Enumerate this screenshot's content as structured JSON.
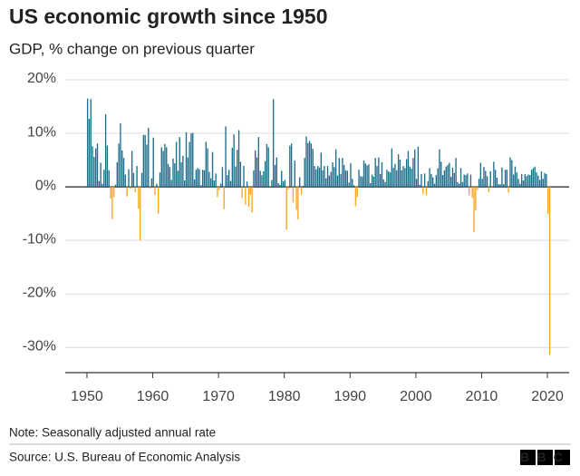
{
  "chart_data": {
    "type": "bar",
    "title": "US economic growth since 1950",
    "subtitle": "GDP, % change on previous quarter",
    "note": "Note: Seasonally adjusted annual rate",
    "source": "Source: U.S. Bureau of Economic Analysis",
    "logo": "BBC",
    "color": "#1f6e8c",
    "negative_color": "#f5a623",
    "xlim": [
      1946.7,
      2023.3
    ],
    "xticks": [
      1950,
      1960,
      1970,
      1980,
      1990,
      2000,
      2010,
      2020
    ],
    "ylim": [
      -34.7,
      20
    ],
    "yticks": [
      {
        "value": 20,
        "label": "20%"
      },
      {
        "value": 10,
        "label": "10%"
      },
      {
        "value": 0,
        "label": "0%"
      },
      {
        "value": -10,
        "label": "-10%"
      },
      {
        "value": -20,
        "label": "-20%"
      },
      {
        "value": -30,
        "label": "-30%"
      }
    ],
    "grid": true,
    "x": [
      1950,
      1950.25,
      1950.5,
      1950.75,
      1951,
      1951.25,
      1951.5,
      1951.75,
      1952,
      1952.25,
      1952.5,
      1952.75,
      1953,
      1953.25,
      1953.5,
      1953.75,
      1954,
      1954.25,
      1954.5,
      1954.75,
      1955,
      1955.25,
      1955.5,
      1955.75,
      1956,
      1956.25,
      1956.5,
      1956.75,
      1957,
      1957.25,
      1957.5,
      1957.75,
      1958,
      1958.25,
      1958.5,
      1958.75,
      1959,
      1959.25,
      1959.5,
      1959.75,
      1960,
      1960.25,
      1960.5,
      1960.75,
      1961,
      1961.25,
      1961.5,
      1961.75,
      1962,
      1962.25,
      1962.5,
      1962.75,
      1963,
      1963.25,
      1963.5,
      1963.75,
      1964,
      1964.25,
      1964.5,
      1964.75,
      1965,
      1965.25,
      1965.5,
      1965.75,
      1966,
      1966.25,
      1966.5,
      1966.75,
      1967,
      1967.25,
      1967.5,
      1967.75,
      1968,
      1968.25,
      1968.5,
      1968.75,
      1969,
      1969.25,
      1969.5,
      1969.75,
      1970,
      1970.25,
      1970.5,
      1970.75,
      1971,
      1971.25,
      1971.5,
      1971.75,
      1972,
      1972.25,
      1972.5,
      1972.75,
      1973,
      1973.25,
      1973.5,
      1973.75,
      1974,
      1974.25,
      1974.5,
      1974.75,
      1975,
      1975.25,
      1975.5,
      1975.75,
      1976,
      1976.25,
      1976.5,
      1976.75,
      1977,
      1977.25,
      1977.5,
      1977.75,
      1978,
      1978.25,
      1978.5,
      1978.75,
      1979,
      1979.25,
      1979.5,
      1979.75,
      1980,
      1980.25,
      1980.5,
      1980.75,
      1981,
      1981.25,
      1981.5,
      1981.75,
      1982,
      1982.25,
      1982.5,
      1982.75,
      1983,
      1983.25,
      1983.5,
      1983.75,
      1984,
      1984.25,
      1984.5,
      1984.75,
      1985,
      1985.25,
      1985.5,
      1985.75,
      1986,
      1986.25,
      1986.5,
      1986.75,
      1987,
      1987.25,
      1987.5,
      1987.75,
      1988,
      1988.25,
      1988.5,
      1988.75,
      1989,
      1989.25,
      1989.5,
      1989.75,
      1990,
      1990.25,
      1990.5,
      1990.75,
      1991,
      1991.25,
      1991.5,
      1991.75,
      1992,
      1992.25,
      1992.5,
      1992.75,
      1993,
      1993.25,
      1993.5,
      1993.75,
      1994,
      1994.25,
      1994.5,
      1994.75,
      1995,
      1995.25,
      1995.5,
      1995.75,
      1996,
      1996.25,
      1996.5,
      1996.75,
      1997,
      1997.25,
      1997.5,
      1997.75,
      1998,
      1998.25,
      1998.5,
      1998.75,
      1999,
      1999.25,
      1999.5,
      1999.75,
      2000,
      2000.25,
      2000.5,
      2000.75,
      2001,
      2001.25,
      2001.5,
      2001.75,
      2002,
      2002.25,
      2002.5,
      2002.75,
      2003,
      2003.25,
      2003.5,
      2003.75,
      2004,
      2004.25,
      2004.5,
      2004.75,
      2005,
      2005.25,
      2005.5,
      2005.75,
      2006,
      2006.25,
      2006.5,
      2006.75,
      2007,
      2007.25,
      2007.5,
      2007.75,
      2008,
      2008.25,
      2008.5,
      2008.75,
      2009,
      2009.25,
      2009.5,
      2009.75,
      2010,
      2010.25,
      2010.5,
      2010.75,
      2011,
      2011.25,
      2011.5,
      2011.75,
      2012,
      2012.25,
      2012.5,
      2012.75,
      2013,
      2013.25,
      2013.5,
      2013.75,
      2014,
      2014.25,
      2014.5,
      2014.75,
      2015,
      2015.25,
      2015.5,
      2015.75,
      2016,
      2016.25,
      2016.5,
      2016.75,
      2017,
      2017.25,
      2017.5,
      2017.75,
      2018,
      2018.25,
      2018.5,
      2018.75,
      2019,
      2019.25,
      2019.5,
      2019.75,
      2020,
      2020.25
    ],
    "values": [
      16.5,
      12.7,
      16.4,
      7.6,
      5.6,
      7.2,
      8.1,
      1.1,
      4.5,
      0.6,
      3.2,
      13.6,
      7.7,
      3.1,
      -2.2,
      -6.0,
      -1.9,
      0.4,
      4.6,
      8.1,
      11.9,
      6.8,
      5.4,
      2.3,
      -1.8,
      3.3,
      -0.4,
      6.7,
      2.6,
      -1.0,
      3.9,
      -4.1,
      -10.0,
      2.6,
      9.7,
      9.7,
      7.9,
      11.0,
      -0.3,
      1.6,
      9.2,
      -1.5,
      0.6,
      -5.0,
      2.7,
      7.4,
      6.7,
      8.0,
      7.4,
      4.3,
      3.7,
      1.3,
      5.3,
      4.4,
      8.4,
      3.0,
      9.3,
      4.6,
      5.8,
      1.2,
      10.2,
      5.5,
      8.4,
      10.0,
      10.1,
      1.4,
      3.2,
      3.5,
      3.3,
      0.3,
      3.2,
      3.1,
      8.4,
      7.2,
      2.8,
      1.6,
      6.5,
      1.2,
      2.5,
      -1.9,
      -0.6,
      0.6,
      3.7,
      -4.2,
      11.3,
      2.2,
      3.2,
      1.1,
      7.3,
      9.8,
      3.8,
      6.9,
      10.6,
      4.7,
      -2.1,
      3.9,
      -3.4,
      1.0,
      -3.7,
      -1.5,
      -4.8,
      3.1,
      6.8,
      5.5,
      9.3,
      3.0,
      2.2,
      2.9,
      4.8,
      8.0,
      7.4,
      0.0,
      1.3,
      16.4,
      4.1,
      5.5,
      0.7,
      0.4,
      3.0,
      1.0,
      1.3,
      -8.0,
      -0.5,
      7.7,
      8.1,
      -2.9,
      4.9,
      -4.3,
      -6.1,
      1.8,
      -1.5,
      0.2,
      5.4,
      9.4,
      8.2,
      8.6,
      8.1,
      7.1,
      3.9,
      3.3,
      3.9,
      3.6,
      6.4,
      3.1,
      3.9,
      1.6,
      3.9,
      2.1,
      2.8,
      4.6,
      3.7,
      7.0,
      2.1,
      5.4,
      2.4,
      5.4,
      4.1,
      3.1,
      3.0,
      0.8,
      4.4,
      1.5,
      0.3,
      -3.6,
      -1.9,
      3.2,
      2.0,
      1.9,
      4.9,
      4.4,
      4.0,
      4.2,
      0.7,
      2.3,
      1.9,
      5.4,
      3.9,
      5.5,
      2.4,
      4.6,
      1.4,
      0.9,
      3.2,
      2.9,
      2.7,
      7.2,
      3.6,
      4.3,
      3.1,
      6.1,
      5.1,
      3.1,
      3.9,
      3.5,
      5.2,
      6.7,
      3.8,
      3.4,
      5.4,
      7.0,
      1.5,
      7.5,
      0.4,
      2.4,
      -1.3,
      2.5,
      -1.6,
      1.1,
      3.5,
      2.4,
      1.8,
      0.6,
      2.2,
      3.5,
      7.0,
      4.7,
      2.2,
      3.1,
      3.8,
      4.1,
      4.5,
      1.9,
      3.6,
      2.6,
      5.4,
      0.9,
      0.6,
      3.5,
      0.9,
      2.3,
      2.2,
      2.5,
      -1.6,
      2.3,
      -2.1,
      -8.4,
      -4.4,
      -0.6,
      1.5,
      4.5,
      1.5,
      3.7,
      3.0,
      2.0,
      -1.0,
      2.9,
      -0.1,
      4.7,
      3.2,
      1.7,
      0.5,
      0.5,
      3.6,
      0.5,
      3.2,
      3.2,
      -1.1,
      5.5,
      5.0,
      2.3,
      3.8,
      2.7,
      1.5,
      0.6,
      2.4,
      1.2,
      2.4,
      2.0,
      2.3,
      2.2,
      3.2,
      3.5,
      3.8,
      2.7,
      2.1,
      1.3,
      2.9,
      1.5,
      2.6,
      2.4,
      -5.0,
      -31.4
    ]
  }
}
